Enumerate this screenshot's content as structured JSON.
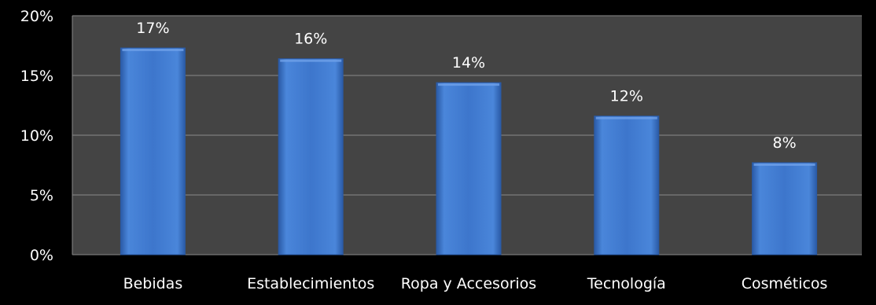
{
  "chart_data": {
    "type": "bar",
    "categories": [
      "Bebidas",
      "Establecimientos",
      "Ropa y Accesorios",
      "Tecnología",
      "Cosméticos"
    ],
    "values": [
      17.3,
      16.4,
      14.4,
      11.6,
      7.7
    ],
    "data_labels": [
      "17%",
      "16%",
      "14%",
      "12%",
      "8%"
    ],
    "title": "",
    "xlabel": "",
    "ylabel": "",
    "ylim": [
      0,
      20
    ],
    "yticks": [
      0,
      5,
      10,
      15,
      20
    ],
    "ytick_labels": [
      "0%",
      "5%",
      "10%",
      "15%",
      "20%"
    ],
    "grid": true,
    "legend": "none",
    "colors": {
      "background": "#000000",
      "plot_background": "#444444",
      "bar": "#3d76cc",
      "bar_light": "#6ea0e8",
      "bar_dark": "#2a5aa6",
      "grid": "#8a8a8a",
      "text": "#ffffff"
    }
  }
}
